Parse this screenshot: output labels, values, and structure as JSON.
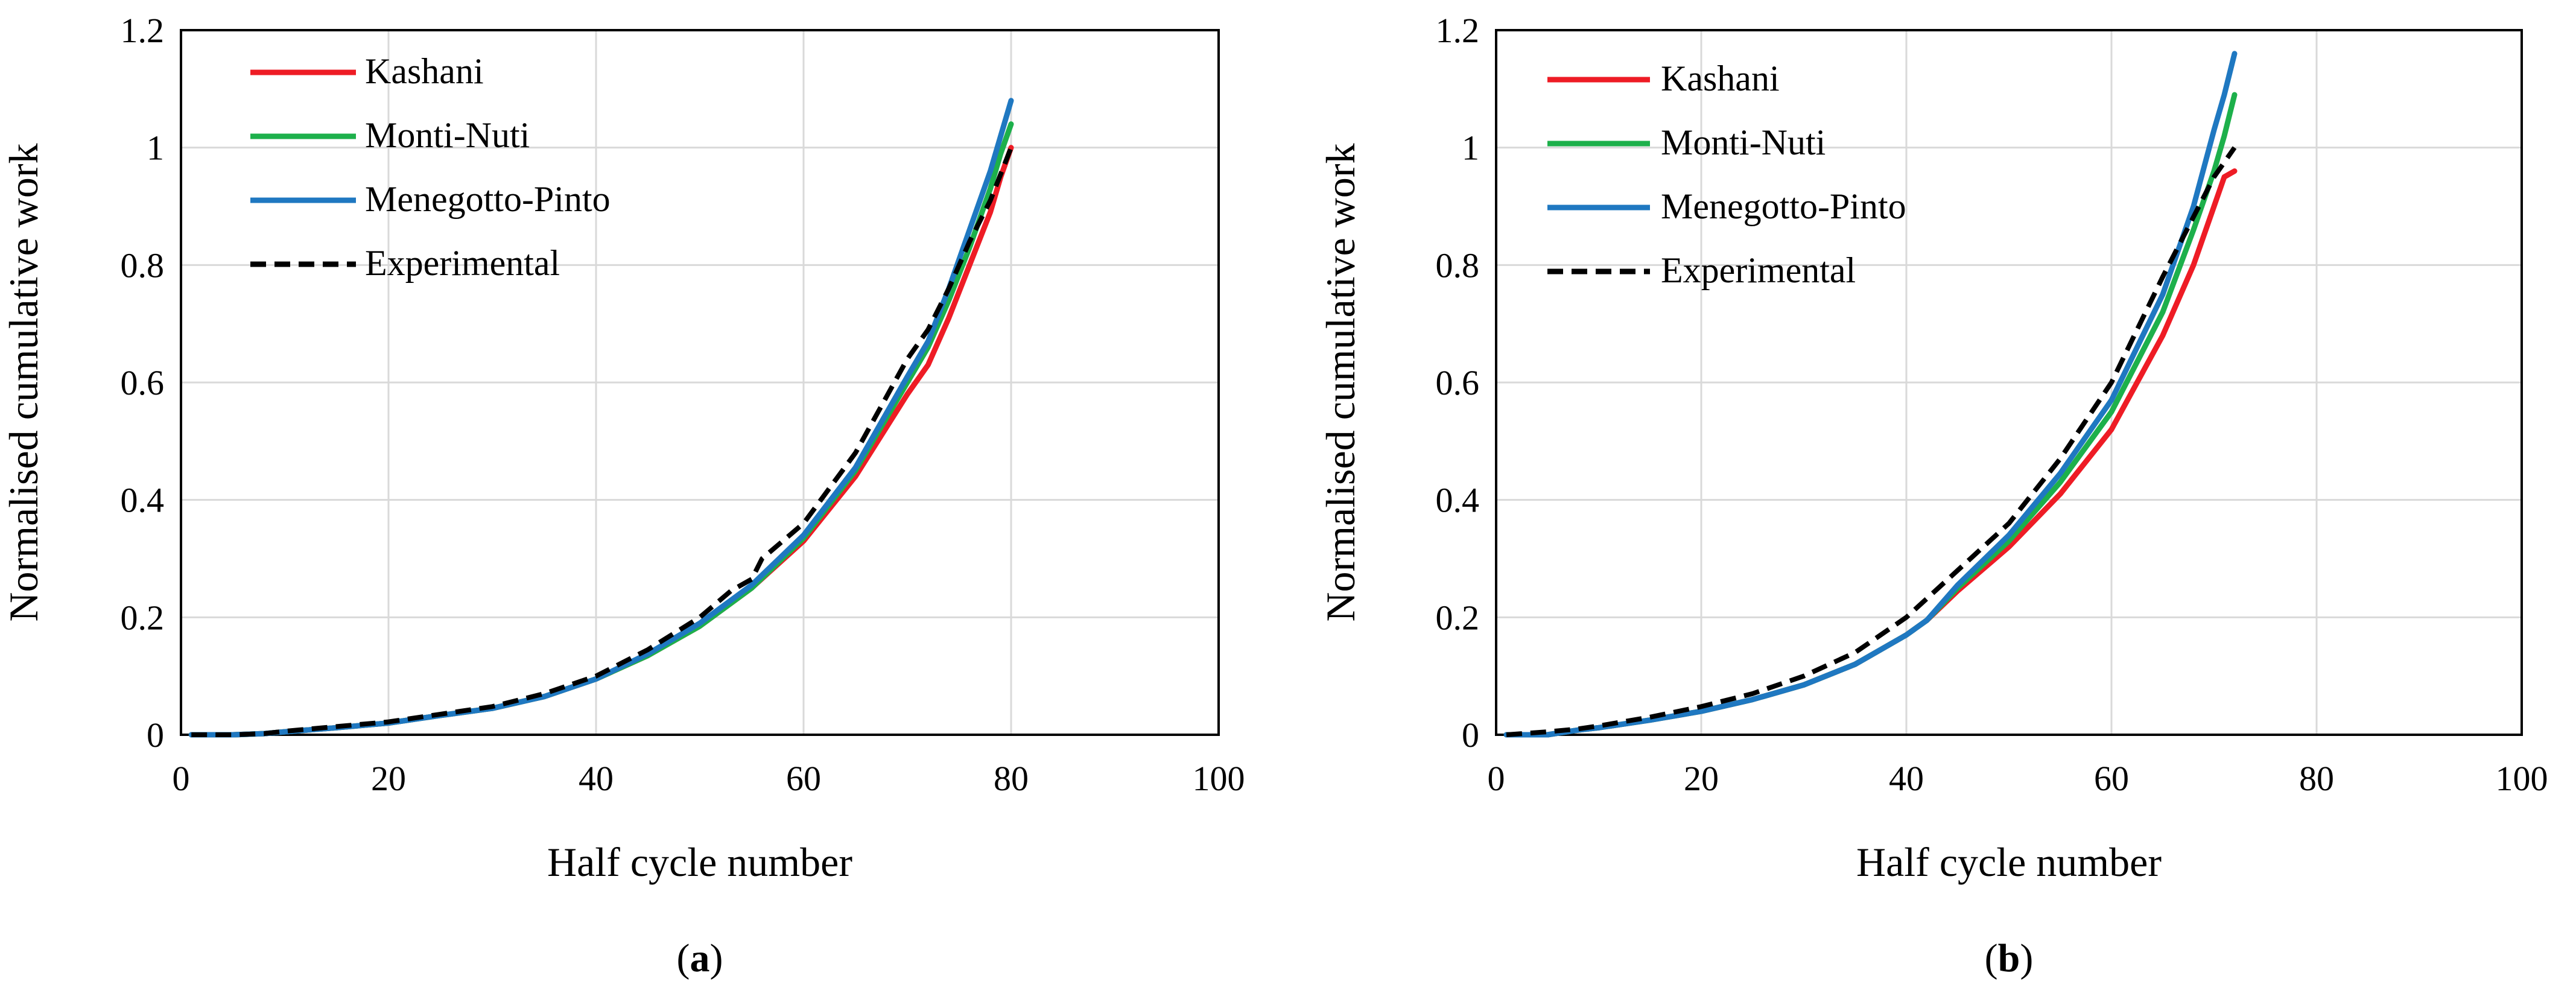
{
  "colors": {
    "kashani": "#ee1c25",
    "monti_nuti": "#1db04b",
    "menegotto_pinto": "#1f78c1",
    "experimental": "#000000",
    "grid": "#d9d9d9"
  },
  "chart_data": [
    {
      "type": "line",
      "panel": "(a)",
      "panel_label": {
        "open": "(",
        "letter": "a",
        "close": ")"
      },
      "xlabel": "Half cycle number",
      "ylabel": "Normalised cumulative work",
      "xlim": [
        0,
        100
      ],
      "ylim": [
        0,
        1.2
      ],
      "xticks": [
        0,
        20,
        40,
        60,
        80,
        100
      ],
      "yticks": [
        0,
        0.2,
        0.4,
        0.6,
        0.8,
        1,
        1.2
      ],
      "ytick_labels": [
        "0",
        "0.2",
        "0.4",
        "0.6",
        "0.8",
        "1",
        "1.2"
      ],
      "grid": true,
      "legend": "top-left",
      "series": [
        {
          "name": "Kashani",
          "color_key": "kashani",
          "dash": "solid",
          "x": [
            1,
            5,
            8,
            10,
            15,
            20,
            25,
            30,
            35,
            40,
            45,
            50,
            55,
            60,
            65,
            70,
            72,
            74,
            76,
            78,
            79,
            80
          ],
          "y": [
            0,
            0,
            0.002,
            0.005,
            0.012,
            0.02,
            0.033,
            0.045,
            0.065,
            0.095,
            0.135,
            0.185,
            0.25,
            0.33,
            0.44,
            0.58,
            0.63,
            0.71,
            0.8,
            0.89,
            0.95,
            1.0
          ]
        },
        {
          "name": "Monti-Nuti",
          "color_key": "monti_nuti",
          "dash": "solid",
          "x": [
            1,
            5,
            8,
            10,
            15,
            20,
            25,
            30,
            35,
            40,
            45,
            50,
            55,
            60,
            65,
            70,
            72,
            74,
            76,
            78,
            79,
            80
          ],
          "y": [
            0,
            0,
            0.002,
            0.005,
            0.012,
            0.02,
            0.033,
            0.045,
            0.065,
            0.095,
            0.135,
            0.185,
            0.25,
            0.335,
            0.45,
            0.6,
            0.66,
            0.74,
            0.83,
            0.93,
            0.99,
            1.04
          ]
        },
        {
          "name": "Menegotto-Pinto",
          "color_key": "menegotto_pinto",
          "dash": "solid",
          "x": [
            1,
            5,
            8,
            10,
            15,
            20,
            25,
            30,
            35,
            40,
            45,
            50,
            55,
            60,
            65,
            70,
            72,
            74,
            76,
            78,
            79,
            80
          ],
          "y": [
            0,
            0,
            0.002,
            0.005,
            0.012,
            0.02,
            0.033,
            0.045,
            0.065,
            0.095,
            0.138,
            0.19,
            0.255,
            0.34,
            0.455,
            0.61,
            0.67,
            0.76,
            0.86,
            0.96,
            1.02,
            1.08
          ]
        },
        {
          "name": "Experimental",
          "color_key": "experimental",
          "dash": "dashed",
          "x": [
            1,
            5,
            8,
            10,
            15,
            20,
            25,
            30,
            35,
            40,
            45,
            50,
            53,
            55,
            56,
            60,
            65,
            70,
            72,
            74,
            76,
            78,
            80
          ],
          "y": [
            0,
            0,
            0.002,
            0.006,
            0.014,
            0.022,
            0.035,
            0.048,
            0.07,
            0.1,
            0.145,
            0.2,
            0.245,
            0.265,
            0.3,
            0.36,
            0.48,
            0.64,
            0.69,
            0.76,
            0.84,
            0.91,
            1.0
          ]
        }
      ]
    },
    {
      "type": "line",
      "panel": "(b)",
      "panel_label": {
        "open": "(",
        "letter": "b",
        "close": ")"
      },
      "xlabel": "Half cycle number",
      "ylabel": "Normalised cumulative work",
      "xlim": [
        0,
        100
      ],
      "ylim": [
        0,
        1.2
      ],
      "xticks": [
        0,
        20,
        40,
        60,
        80,
        100
      ],
      "yticks": [
        0,
        0.2,
        0.4,
        0.6,
        0.8,
        1,
        1.2
      ],
      "ytick_labels": [
        "0",
        "0.2",
        "0.4",
        "0.6",
        "0.8",
        "1",
        "1.2"
      ],
      "grid": true,
      "legend": "top-left",
      "series": [
        {
          "name": "Kashani",
          "color_key": "kashani",
          "dash": "solid",
          "x": [
            1,
            5,
            8,
            10,
            15,
            20,
            25,
            30,
            35,
            40,
            42,
            45,
            50,
            55,
            60,
            65,
            68,
            70,
            71,
            72
          ],
          "y": [
            0,
            0,
            0.008,
            0.012,
            0.025,
            0.04,
            0.06,
            0.085,
            0.12,
            0.17,
            0.195,
            0.245,
            0.32,
            0.41,
            0.52,
            0.68,
            0.8,
            0.9,
            0.95,
            0.96
          ]
        },
        {
          "name": "Monti-Nuti",
          "color_key": "monti_nuti",
          "dash": "solid",
          "x": [
            1,
            5,
            8,
            10,
            15,
            20,
            25,
            30,
            35,
            40,
            42,
            45,
            50,
            55,
            60,
            65,
            68,
            70,
            71,
            72
          ],
          "y": [
            0,
            0,
            0.008,
            0.012,
            0.025,
            0.04,
            0.06,
            0.085,
            0.12,
            0.17,
            0.195,
            0.25,
            0.33,
            0.43,
            0.55,
            0.72,
            0.86,
            0.96,
            1.02,
            1.09
          ]
        },
        {
          "name": "Menegotto-Pinto",
          "color_key": "menegotto_pinto",
          "dash": "solid",
          "x": [
            1,
            5,
            8,
            10,
            15,
            20,
            25,
            30,
            35,
            40,
            42,
            45,
            50,
            55,
            60,
            65,
            68,
            70,
            71,
            72
          ],
          "y": [
            0,
            0,
            0.008,
            0.012,
            0.025,
            0.04,
            0.06,
            0.085,
            0.12,
            0.17,
            0.195,
            0.255,
            0.34,
            0.445,
            0.57,
            0.75,
            0.9,
            1.03,
            1.09,
            1.16
          ]
        },
        {
          "name": "Experimental",
          "color_key": "experimental",
          "dash": "dashed",
          "x": [
            1,
            5,
            8,
            10,
            15,
            20,
            25,
            30,
            35,
            40,
            45,
            50,
            55,
            60,
            65,
            70,
            72
          ],
          "y": [
            0,
            0.005,
            0.01,
            0.015,
            0.03,
            0.048,
            0.07,
            0.1,
            0.14,
            0.2,
            0.28,
            0.36,
            0.47,
            0.6,
            0.78,
            0.95,
            1.0
          ]
        }
      ]
    }
  ]
}
